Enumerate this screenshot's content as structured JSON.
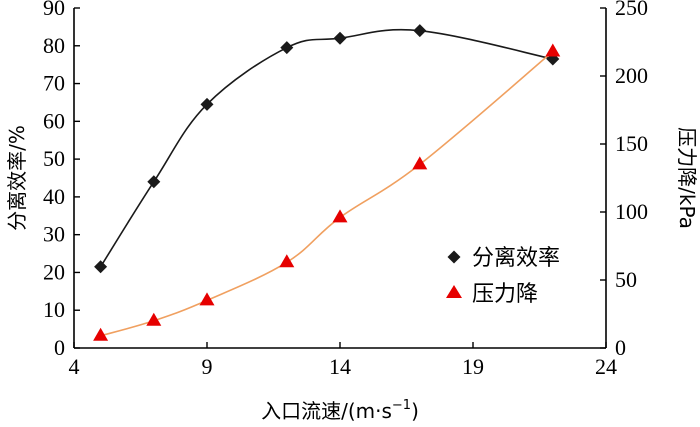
{
  "chart_data": {
    "type": "line",
    "xlabel": "入口流速/(m·s",
    "xlabel_sup": "−1",
    "xlabel_close": ")",
    "xlim": [
      4,
      24
    ],
    "xticks": [
      4,
      9,
      14,
      19,
      24
    ],
    "y_left": {
      "label": "分离效率/%",
      "lim": [
        0,
        90
      ],
      "ticks": [
        0,
        10,
        20,
        30,
        40,
        50,
        60,
        70,
        80,
        90
      ]
    },
    "y_right": {
      "label": "压力降/kPa",
      "lim": [
        0,
        250
      ],
      "ticks": [
        0,
        50,
        100,
        150,
        200,
        250
      ]
    },
    "legend_position": "lower-right",
    "series": [
      {
        "name": "分离效率",
        "axis": "left",
        "marker": "diamond",
        "color": "#1a1a1a",
        "line_color": "#1a1a1a",
        "x": [
          5,
          7,
          9,
          12,
          14,
          17,
          22
        ],
        "y": [
          21.5,
          44,
          64.5,
          79.5,
          82,
          84,
          76.5
        ]
      },
      {
        "name": "压力降",
        "axis": "right",
        "marker": "triangle",
        "color": "#e60000",
        "line_color": "#f0a060",
        "x": [
          5,
          7,
          9,
          12,
          14,
          17,
          22
        ],
        "y": [
          9,
          20,
          35,
          63,
          96,
          135,
          218
        ]
      }
    ]
  }
}
